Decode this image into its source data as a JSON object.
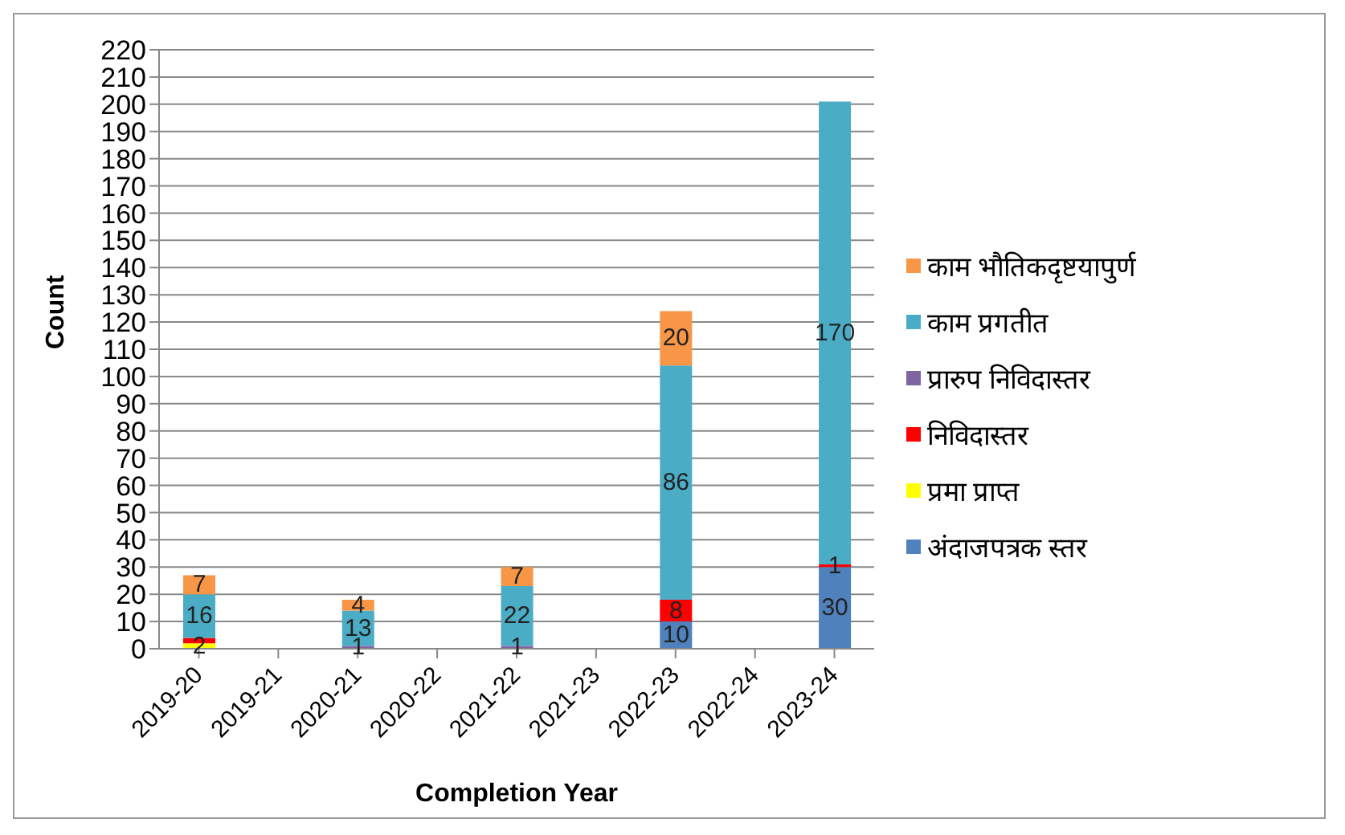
{
  "chart_data": {
    "type": "bar",
    "stacked": true,
    "xlabel": "Completion Year",
    "ylabel": "Count",
    "categories": [
      "2019-20",
      "2019-21",
      "2020-21",
      "2020-22",
      "2021-22",
      "2021-23",
      "2022-23",
      "2022-24",
      "2023-24"
    ],
    "series": [
      {
        "name": "अंदाजपत्रक स्तर",
        "color": "#4f81bd",
        "values": [
          null,
          null,
          null,
          null,
          null,
          null,
          10,
          null,
          30
        ],
        "value_labels": [
          null,
          null,
          null,
          null,
          null,
          null,
          "10",
          null,
          "30"
        ]
      },
      {
        "name": "प्रमा प्राप्त",
        "color": "#ffff00",
        "values": [
          2,
          null,
          null,
          null,
          null,
          null,
          null,
          null,
          null
        ],
        "value_labels": [
          "2",
          null,
          null,
          null,
          null,
          null,
          null,
          null,
          null
        ]
      },
      {
        "name": "निविदास्तर",
        "color": "#ff0000",
        "values": [
          2,
          null,
          null,
          null,
          null,
          null,
          8,
          null,
          1
        ],
        "value_labels": [
          null,
          null,
          null,
          null,
          null,
          null,
          "8",
          null,
          "1"
        ]
      },
      {
        "name": "प्रारुप निविदास्तर",
        "color": "#8064a2",
        "values": [
          null,
          null,
          1,
          null,
          1,
          null,
          null,
          null,
          null
        ],
        "value_labels": [
          null,
          null,
          "1",
          null,
          "1",
          null,
          null,
          null,
          null
        ]
      },
      {
        "name": "काम प्रगतीत",
        "color": "#4bacc6",
        "values": [
          16,
          null,
          13,
          null,
          22,
          null,
          86,
          null,
          170
        ],
        "value_labels": [
          "16",
          null,
          "13",
          null,
          "22",
          null,
          "86",
          null,
          "170"
        ]
      },
      {
        "name": "काम भौतिकदृष्टयापुर्ण",
        "color": "#f79646",
        "values": [
          7,
          null,
          4,
          null,
          7,
          null,
          20,
          null,
          null
        ],
        "value_labels": [
          "7",
          null,
          "4",
          null,
          "7",
          null,
          "20",
          null,
          null
        ]
      }
    ],
    "ylim": [
      0,
      220
    ],
    "yticks": [
      0,
      10,
      20,
      30,
      40,
      50,
      60,
      70,
      80,
      90,
      100,
      110,
      120,
      130,
      140,
      150,
      160,
      170,
      180,
      190,
      200,
      210,
      220
    ],
    "grid": "y",
    "legend": "right"
  }
}
